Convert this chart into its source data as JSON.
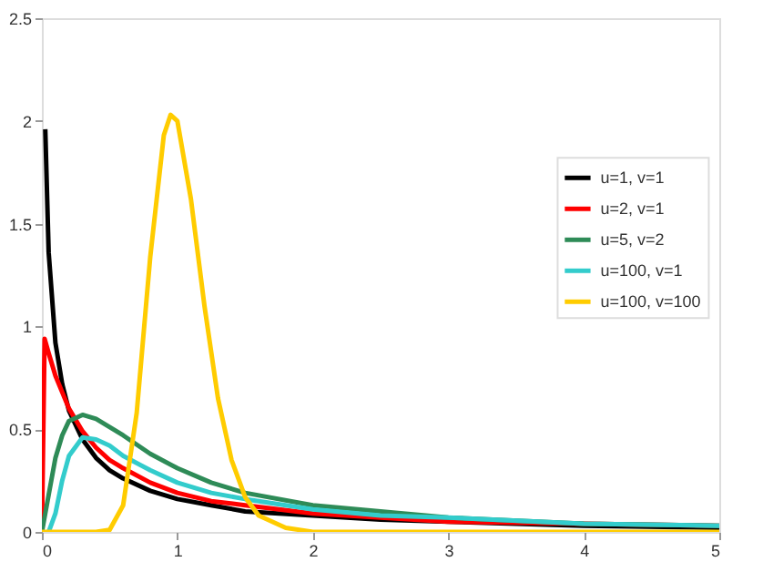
{
  "chart_data": {
    "type": "line",
    "xlim": [
      0,
      5
    ],
    "xticks": [
      0,
      1,
      2,
      3,
      4,
      5
    ],
    "ylim": [
      0,
      2.5
    ],
    "yticks": [
      0,
      0.5,
      1,
      1.5,
      2,
      2.5
    ],
    "grid": false,
    "legend": "right",
    "marker": "none",
    "line_style": "solid",
    "series": [
      {
        "name": "u=1, v=1",
        "color": "#000000",
        "x": [
          0.025,
          0.05,
          0.1,
          0.15,
          0.2,
          0.3,
          0.4,
          0.5,
          0.6,
          0.8,
          1,
          1.25,
          1.5,
          2,
          2.5,
          3,
          4,
          5
        ],
        "values": [
          1.96,
          1.36,
          0.92,
          0.72,
          0.59,
          0.45,
          0.36,
          0.3,
          0.26,
          0.2,
          0.16,
          0.13,
          0.1,
          0.08,
          0.06,
          0.05,
          0.03,
          0.02
        ]
      },
      {
        "name": "u=2, v=1",
        "color": "#ff0000",
        "x": [
          0,
          0.02,
          0.05,
          0.1,
          0.15,
          0.2,
          0.3,
          0.4,
          0.5,
          0.6,
          0.8,
          1,
          1.25,
          1.5,
          2,
          2.5,
          3,
          4,
          5
        ],
        "values": [
          0,
          0.94,
          0.87,
          0.76,
          0.68,
          0.6,
          0.49,
          0.41,
          0.35,
          0.31,
          0.24,
          0.19,
          0.15,
          0.13,
          0.09,
          0.07,
          0.05,
          0.04,
          0.03
        ]
      },
      {
        "name": "u=5, v=2",
        "color": "#2e8b57",
        "x": [
          0,
          0.05,
          0.1,
          0.15,
          0.2,
          0.3,
          0.4,
          0.5,
          0.6,
          0.8,
          1,
          1.25,
          1.5,
          2,
          2.5,
          3,
          4,
          5
        ],
        "values": [
          0,
          0.18,
          0.36,
          0.47,
          0.54,
          0.57,
          0.55,
          0.51,
          0.47,
          0.38,
          0.31,
          0.24,
          0.19,
          0.13,
          0.1,
          0.07,
          0.04,
          0.03
        ]
      },
      {
        "name": "u=100, v=1",
        "color": "#33cccc",
        "x": [
          0.05,
          0.1,
          0.15,
          0.2,
          0.3,
          0.4,
          0.5,
          0.6,
          0.8,
          1,
          1.25,
          1.5,
          2,
          2.5,
          3,
          4,
          5
        ],
        "values": [
          0,
          0.09,
          0.25,
          0.37,
          0.46,
          0.45,
          0.42,
          0.37,
          0.3,
          0.24,
          0.19,
          0.16,
          0.11,
          0.08,
          0.07,
          0.04,
          0.03
        ]
      },
      {
        "name": "u=100, v=100",
        "color": "#ffcc00",
        "x": [
          0,
          0.4,
          0.5,
          0.6,
          0.7,
          0.8,
          0.9,
          0.95,
          1,
          1.1,
          1.2,
          1.3,
          1.4,
          1.5,
          1.6,
          1.8,
          2,
          5
        ],
        "values": [
          0,
          0,
          0.01,
          0.13,
          0.58,
          1.34,
          1.93,
          2.03,
          2.0,
          1.62,
          1.1,
          0.65,
          0.35,
          0.17,
          0.08,
          0.02,
          0,
          0
        ]
      }
    ]
  }
}
